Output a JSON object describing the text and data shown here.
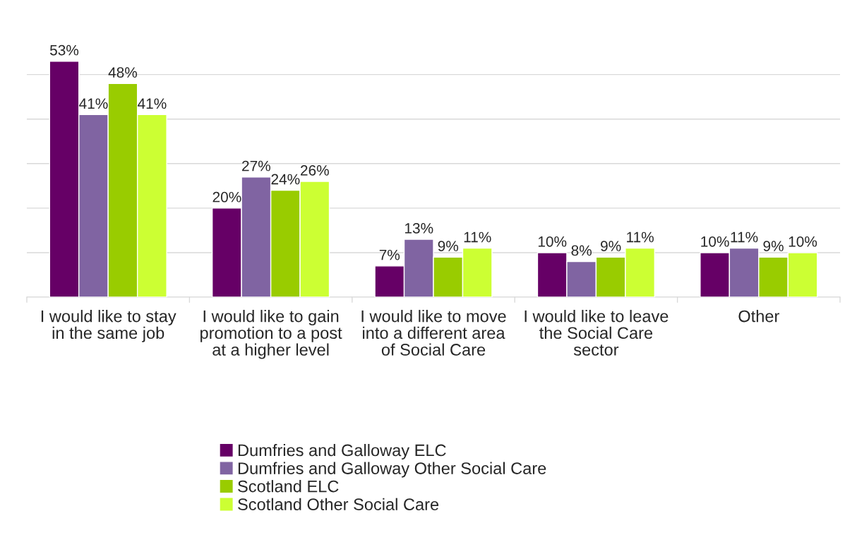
{
  "chart_data": {
    "type": "bar",
    "categories": [
      "I would like to stay in the same job",
      "I would like to gain promotion to a post at a higher level",
      "I would like to move into a different area of Social Care",
      "I would like to leave the Social Care sector",
      "Other"
    ],
    "series": [
      {
        "name": "Dumfries and Galloway ELC",
        "color": "#660066",
        "values": [
          53,
          20,
          7,
          10,
          10
        ],
        "value_labels": [
          "53%",
          "20%",
          "7%",
          "10%",
          "10%"
        ]
      },
      {
        "name": "Dumfries and Galloway Other Social Care",
        "color": "#8064a2",
        "values": [
          41,
          27,
          13,
          8,
          11
        ],
        "value_labels": [
          "41%",
          "27%",
          "13%",
          "8%",
          "11%"
        ]
      },
      {
        "name": "Scotland ELC",
        "color": "#99cc00",
        "values": [
          48,
          24,
          9,
          9,
          9
        ],
        "value_labels": [
          "48%",
          "24%",
          "9%",
          "9%",
          "9%"
        ]
      },
      {
        "name": "Scotland Other Social Care",
        "color": "#ccff33",
        "values": [
          41,
          26,
          11,
          11,
          10
        ],
        "value_labels": [
          "41%",
          "26%",
          "11%",
          "11%",
          "10%"
        ]
      }
    ],
    "tick_labels": "x",
    "grid": "y",
    "legend": "bottom"
  }
}
